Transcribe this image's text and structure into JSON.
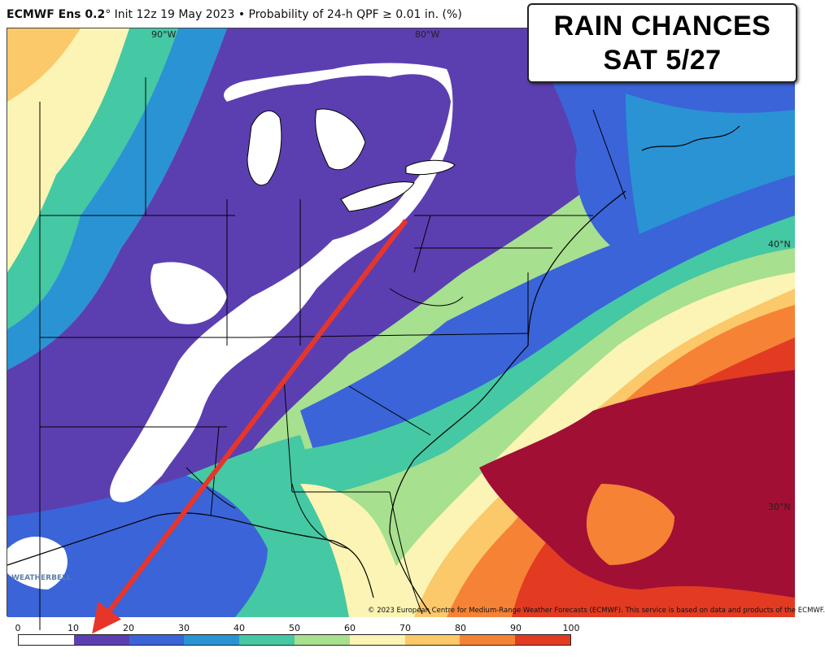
{
  "header": {
    "model": "ECMWF Ens 0.2",
    "rest": "° Init 12z 19 May 2023 • Probability of 24-h QPF ≥ 0.01 in. (%)"
  },
  "title": {
    "line1": "RAIN CHANCES",
    "line2": "SAT 5/27"
  },
  "coords": {
    "lon90": "90°W",
    "lon80": "80°W",
    "lat40": "40°N",
    "lat30": "30°N"
  },
  "copyright": "© 2023 European Centre for Medium-Range Weather Forecasts (ECMWF). This service is based on data and products of the ECMWF.",
  "logo": "WEATHERBELL",
  "colorbar": {
    "labels": [
      "0",
      "10",
      "20",
      "30",
      "40",
      "50",
      "60",
      "70",
      "80",
      "90",
      "100"
    ],
    "colors": [
      "#ffffff",
      "#5b3fb0",
      "#3a64d8",
      "#2a93d4",
      "#45c8a4",
      "#a7e08f",
      "#fbf4b4",
      "#fbc86a",
      "#f58235",
      "#e23b22",
      "#a10f35"
    ]
  }
}
